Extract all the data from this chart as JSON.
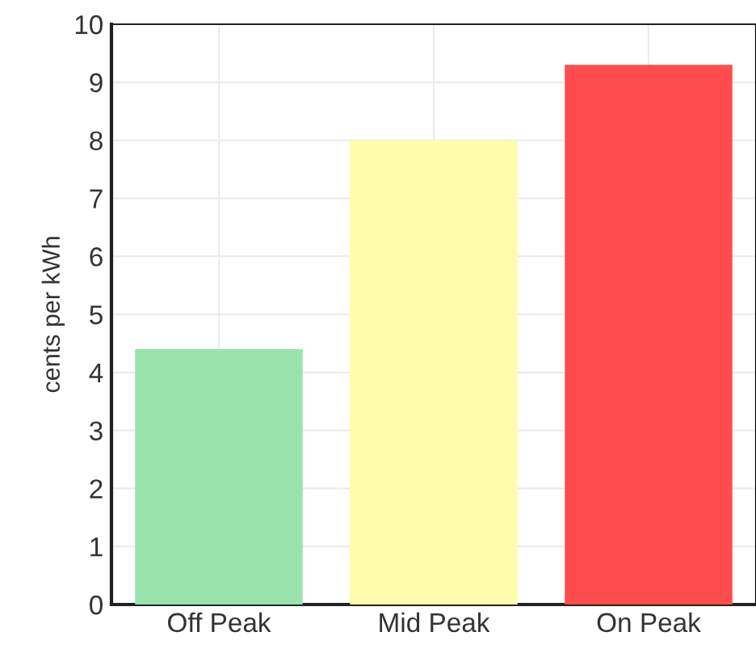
{
  "chart_data": {
    "type": "bar",
    "ylabel": "cents per kWh",
    "categories": [
      "Off Peak",
      "Mid Peak",
      "On Peak"
    ],
    "values": [
      4.4,
      8.0,
      9.3
    ],
    "colors": [
      "#98e3ac",
      "#fdfdab",
      "#ff4c4c"
    ],
    "ylim": [
      0,
      10
    ],
    "yticks": [
      0,
      1,
      2,
      3,
      4,
      5,
      6,
      7,
      8,
      9,
      10
    ],
    "grid": true
  }
}
